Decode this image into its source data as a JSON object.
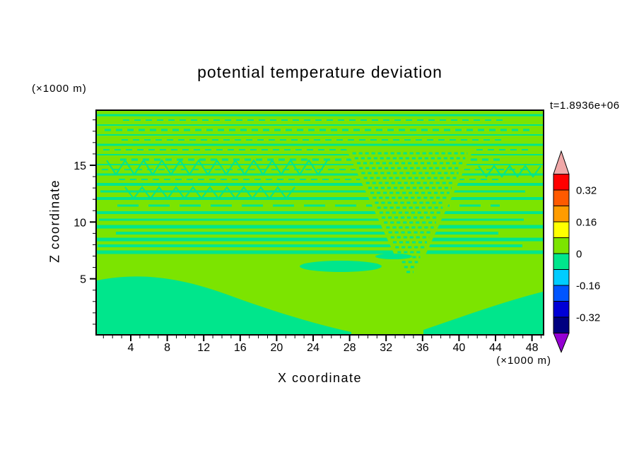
{
  "chart_data": {
    "type": "heatmap",
    "subtype": "filled-contour",
    "title": "potential temperature deviation",
    "annotation": "t=1.8936e+06",
    "xlabel": "X coordinate",
    "x_units": "(×1000 m)",
    "ylabel": "Z coordinate",
    "y_units": "(×1000 m)",
    "x_ticks": [
      4,
      8,
      12,
      16,
      20,
      24,
      28,
      32,
      36,
      40,
      44,
      48
    ],
    "y_ticks": [
      5,
      10,
      15
    ],
    "xlim": [
      0,
      49
    ],
    "ylim": [
      0,
      19.8
    ],
    "contour_interval": 0.08,
    "colorbar": {
      "tick_labels": [
        "0.32",
        "0.16",
        "0",
        "-0.16",
        "-0.32"
      ],
      "levels_top_to_bottom": [
        0.4,
        0.32,
        0.24,
        0.16,
        0.08,
        0,
        -0.08,
        -0.16,
        -0.24,
        -0.32,
        -0.4
      ],
      "colors_top_to_bottom": [
        "#FF0000",
        "#FF5A00",
        "#FF9C00",
        "#FFFF00",
        "#7CE400",
        "#00E68C",
        "#00CCFF",
        "#0055FF",
        "#0000D6",
        "#000080"
      ],
      "over_arrow_color": "#F0A8A8",
      "under_arrow_color": "#9400D3"
    },
    "field": {
      "positive_band_color": "#7CE400",
      "negative_band_color": "#00E68C",
      "field_summary": "deviation field lies almost entirely in the -0.08 to 0.08 bands: striped wave pattern aloft, smooth near-zero negative pool at low levels, funnel-shaped disturbance near x=34"
    }
  }
}
